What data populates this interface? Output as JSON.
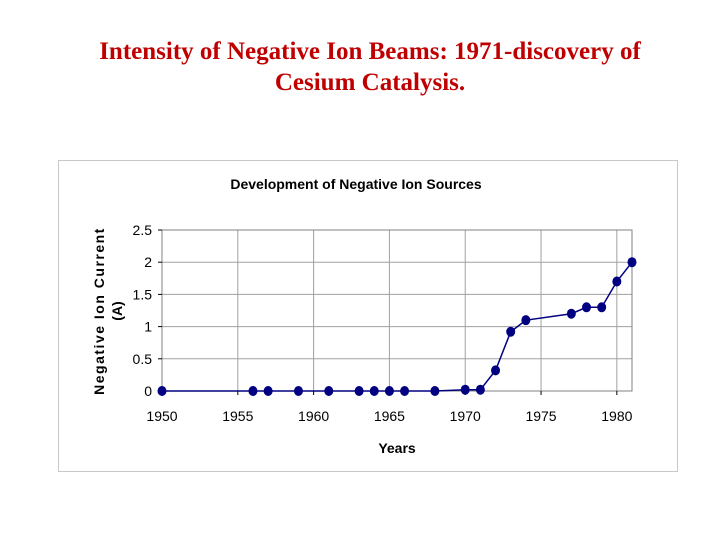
{
  "slide": {
    "title_line1": "Intensity of Negative Ion Beams: 1971-discovery of",
    "title_line2": "Cesium Catalysis.",
    "title_color": "#c00000"
  },
  "chart_data": {
    "type": "line",
    "title": "Development of Negative Ion Sources",
    "xlabel": "Years",
    "ylabel_line1": "Negative Ion Current",
    "ylabel_line2": "(A)",
    "xlim": [
      1950,
      1981
    ],
    "ylim": [
      0,
      2.5
    ],
    "xticks": [
      1950,
      1955,
      1960,
      1965,
      1970,
      1975,
      1980
    ],
    "yticks": [
      0,
      0.5,
      1,
      1.5,
      2,
      2.5
    ],
    "grid": true,
    "series_color": "#000080",
    "series": [
      {
        "x": [
          1950,
          1956,
          1957,
          1959,
          1961,
          1963,
          1964,
          1965,
          1966,
          1968,
          1970,
          1971,
          1972,
          1973,
          1974,
          1977,
          1978,
          1979,
          1980,
          1981
        ],
        "y": [
          0,
          0,
          0,
          0,
          0,
          0,
          0,
          0,
          0,
          0,
          0.02,
          0.02,
          0.32,
          0.92,
          1.1,
          1.2,
          1.3,
          1.3,
          1.7,
          2.0
        ]
      }
    ]
  }
}
